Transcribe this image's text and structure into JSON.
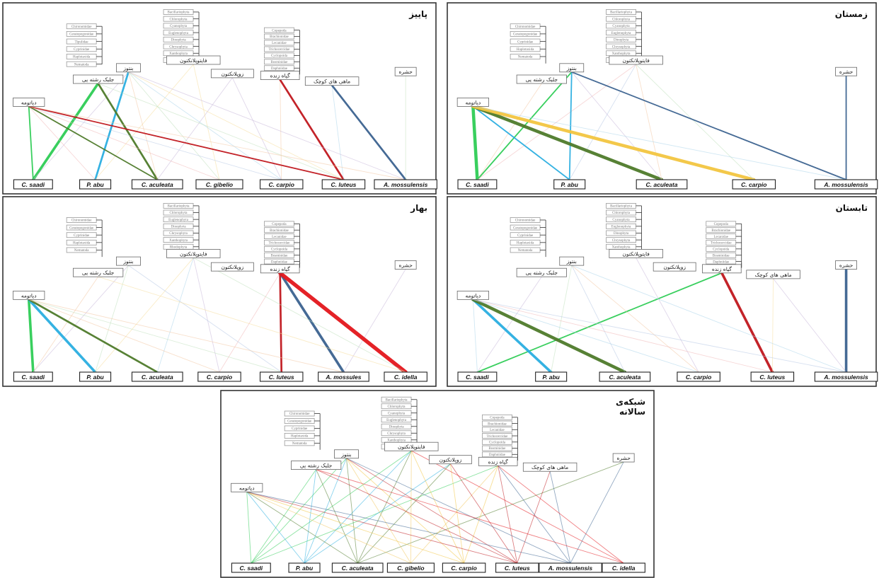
{
  "food_labels": {
    "diatom": "دیاتومه",
    "filament": "جلبک رشته یی",
    "benthos": "بنتوز",
    "phyto": "فایتوپلانکتون",
    "zoo": "زوپلانکتون",
    "plant": "گیاه زنده",
    "smallfish": "ماهی های کوچک",
    "insect": "حشره"
  },
  "colors": {
    "C. saadi": "#2ecc55",
    "P. abu": "#2aaee0",
    "C. aculeata": "#4e7a2a",
    "C. gibelio": "#f2c75c",
    "C. carpio": "#f2c540",
    "C. luteus": "#c0171d",
    "A. mossulensis": "#3b628f",
    "C. idella": "#e3161b"
  },
  "panels": [
    {
      "key": "autumn",
      "title": "پاییز",
      "benthos_taxa": [
        "Chironomidae",
        "Ceratopogonidae",
        "Tipulidae",
        "Cyprinidae",
        "Haplotaxida",
        "Nematoda"
      ],
      "phyto_taxa": [
        "Bacillariophyta",
        "Chlorophyta",
        "Cyanophyta",
        "Euglenophyta",
        "Dinophyta",
        "Chrysophyta",
        "Xanthophyta",
        "Rhodophyta"
      ],
      "zoo_taxa": [
        "Copepoda",
        "Brachionidae",
        "Lecanidae",
        "Trichocercidae",
        "Cyclopoida",
        "Bosminidae",
        "Daphniidae",
        "Sididae"
      ],
      "species": [
        "C. saadi",
        "P. abu",
        "C. aculeata",
        "C. gibelio",
        "C. carpio",
        "C. luteus",
        "A. mossulensis"
      ],
      "links": [
        [
          "C. saadi",
          "diatom",
          2
        ],
        [
          "C. saadi",
          "filament",
          4
        ],
        [
          "C. saadi",
          "benthos",
          1
        ],
        [
          "P. abu",
          "diatom",
          1
        ],
        [
          "P. abu",
          "benthos",
          3
        ],
        [
          "P. abu",
          "phyto",
          1
        ],
        [
          "C. aculeata",
          "diatom",
          2
        ],
        [
          "C. aculeata",
          "filament",
          3
        ],
        [
          "C. aculeata",
          "benthos",
          1
        ],
        [
          "C. aculeata",
          "zoo",
          1
        ],
        [
          "C. gibelio",
          "diatom",
          1
        ],
        [
          "C. gibelio",
          "benthos",
          1
        ],
        [
          "C. gibelio",
          "phyto",
          1
        ],
        [
          "C. carpio",
          "diatom",
          1
        ],
        [
          "C. carpio",
          "benthos",
          1
        ],
        [
          "C. carpio",
          "plant",
          1
        ],
        [
          "C. carpio",
          "zoo",
          1
        ],
        [
          "C. luteus",
          "diatom",
          2
        ],
        [
          "C. luteus",
          "filament",
          1
        ],
        [
          "C. luteus",
          "benthos",
          1
        ],
        [
          "C. luteus",
          "plant",
          3
        ],
        [
          "C. luteus",
          "smallfish",
          1
        ],
        [
          "A. mossulensis",
          "diatom",
          1
        ],
        [
          "A. mossulensis",
          "benthos",
          1
        ],
        [
          "A. mossulensis",
          "smallfish",
          3
        ],
        [
          "A. mossulensis",
          "insect",
          1
        ]
      ]
    },
    {
      "key": "winter",
      "title": "زمستان",
      "benthos_taxa": [
        "Chironomidae",
        "Ceratopogonidae",
        "Cyprinidae",
        "Haplotaxida",
        "Nematoda"
      ],
      "phyto_taxa": [
        "Bacillariophyta",
        "Chlorophyta",
        "Cyanophyta",
        "Euglenophyta",
        "Dinophyta",
        "Chrysophyta",
        "Xanthophyta",
        "Rhodophyta"
      ],
      "zoo_taxa": [],
      "species": [
        "C. saadi",
        "P. abu",
        "C. aculeata",
        "C. carpio",
        "A. mossulensis"
      ],
      "links": [
        [
          "C. saadi",
          "diatom",
          5
        ],
        [
          "C. saadi",
          "filament",
          1
        ],
        [
          "C. saadi",
          "benthos",
          2
        ],
        [
          "C. saadi",
          "phyto",
          1
        ],
        [
          "P. abu",
          "diatom",
          2
        ],
        [
          "P. abu",
          "benthos",
          2
        ],
        [
          "P. abu",
          "phyto",
          1
        ],
        [
          "C. aculeata",
          "diatom",
          5
        ],
        [
          "C. aculeata",
          "phyto",
          1
        ],
        [
          "C. aculeata",
          "benthos",
          1
        ],
        [
          "C. carpio",
          "diatom",
          5
        ],
        [
          "C. carpio",
          "phyto",
          1
        ],
        [
          "A. mossulensis",
          "benthos",
          2
        ],
        [
          "A. mossulensis",
          "insect",
          2
        ],
        [
          "A. mossulensis",
          "diatom",
          1
        ]
      ]
    },
    {
      "key": "spring",
      "title": "بهار",
      "benthos_taxa": [
        "Chironomidae",
        "Ceratopogonidae",
        "Cyprinidae",
        "Haplotaxida",
        "Nematoda"
      ],
      "phyto_taxa": [
        "Bacillariophyta",
        "Chlorophyta",
        "Euglenophyta",
        "Dinophyta",
        "Chrysophyta",
        "Xanthophyta",
        "Rhodophyta"
      ],
      "zoo_taxa": [
        "Copepoda",
        "Brachionidae",
        "Lecanidae",
        "Trichocercidae",
        "Cyclopoida",
        "Bosminidae",
        "Daphniidae",
        "Sididae"
      ],
      "species": [
        "C. saadi",
        "P. abu",
        "C. aculeata",
        "C. carpio",
        "C. luteus",
        "A. mossules",
        "C. idella"
      ],
      "links": [
        [
          "C. saadi",
          "diatom",
          4
        ],
        [
          "C. saadi",
          "filament",
          1
        ],
        [
          "C. saadi",
          "benthos",
          1
        ],
        [
          "P. abu",
          "diatom",
          4
        ],
        [
          "P. abu",
          "benthos",
          1
        ],
        [
          "P. abu",
          "phyto",
          1
        ],
        [
          "C. aculeata",
          "diatom",
          3
        ],
        [
          "C. aculeata",
          "phyto",
          1
        ],
        [
          "C. carpio",
          "diatom",
          1
        ],
        [
          "C. carpio",
          "phyto",
          1
        ],
        [
          "C. carpio",
          "plant",
          1
        ],
        [
          "C. luteus",
          "diatom",
          1
        ],
        [
          "C. luteus",
          "plant",
          3
        ],
        [
          "C. luteus",
          "benthos",
          1
        ],
        [
          "A. mossules",
          "plant",
          4
        ],
        [
          "A. mossules",
          "diatom",
          1
        ],
        [
          "A. mossules",
          "insect",
          1
        ],
        [
          "C. idella",
          "plant",
          6
        ],
        [
          "C. idella",
          "phyto",
          1
        ],
        [
          "C. idella",
          "filament",
          1
        ]
      ]
    },
    {
      "key": "summer",
      "title": "تابستان",
      "benthos_taxa": [
        "Chironomidae",
        "Ceratopogonidae",
        "Cyprinidae",
        "Haplotaxida",
        "Nematoda"
      ],
      "phyto_taxa": [
        "Bacillariophyta",
        "Chlorophyta",
        "Cyanophyta",
        "Euglenophyta",
        "Dinophyta",
        "Chrysophyta",
        "Xanthophyta"
      ],
      "zoo_taxa": [
        "Copepoda",
        "Brachionidae",
        "Lecanidae",
        "Trichocercidae",
        "Cyclopoida",
        "Bosminidae",
        "Daphniidae",
        "Sididae"
      ],
      "species": [
        "C. saadi",
        "P. abu",
        "C. aculeata",
        "C. carpio",
        "C. luteus",
        "A. mossulensis"
      ],
      "links": [
        [
          "C. saadi",
          "diatom",
          1
        ],
        [
          "C. saadi",
          "plant",
          2
        ],
        [
          "C. saadi",
          "filament",
          1
        ],
        [
          "P. abu",
          "diatom",
          4
        ],
        [
          "P. abu",
          "benthos",
          1
        ],
        [
          "C. aculeata",
          "diatom",
          5
        ],
        [
          "C. aculeata",
          "benthos",
          1
        ],
        [
          "C. carpio",
          "diatom",
          1
        ],
        [
          "C. carpio",
          "benthos",
          1
        ],
        [
          "C. carpio",
          "phyto",
          1
        ],
        [
          "C. luteus",
          "diatom",
          1
        ],
        [
          "C. luteus",
          "plant",
          4
        ],
        [
          "C. luteus",
          "smallfish",
          1
        ],
        [
          "A. mossulensis",
          "diatom",
          1
        ],
        [
          "A. mossulensis",
          "benthos",
          1
        ],
        [
          "A. mossulensis",
          "insect",
          4
        ],
        [
          "A. mossulensis",
          "smallfish",
          1
        ]
      ]
    },
    {
      "key": "annual",
      "title": "شبکه‌ی سالانه",
      "benthos_taxa": [
        "Chironomidae",
        "Ceratopogonidae",
        "Cyprinidae",
        "Haplotaxida",
        "Nematoda"
      ],
      "phyto_taxa": [
        "Bacillariophyta",
        "Chlorophyta",
        "Cyanophyta",
        "Euglenophyta",
        "Dinophyta",
        "Chrysophyta",
        "Xanthophyta",
        "Rhodophyta"
      ],
      "zoo_taxa": [
        "Copepoda",
        "Brachionidae",
        "Lecanidae",
        "Trichocercidae",
        "Cyclopoida",
        "Bosminidae",
        "Daphniidae",
        "Sididae"
      ],
      "species": [
        "C. saadi",
        "P. abu",
        "C. aculeata",
        "C. gibelio",
        "C. carpio",
        "C. luteus",
        "A. mossulensis",
        "C. idella"
      ],
      "links": [
        [
          "C. saadi",
          "diatom",
          1
        ],
        [
          "C. saadi",
          "filament",
          1
        ],
        [
          "C. saadi",
          "benthos",
          1
        ],
        [
          "C. saadi",
          "phyto",
          1
        ],
        [
          "C. saadi",
          "plant",
          1
        ],
        [
          "P. abu",
          "diatom",
          1
        ],
        [
          "P. abu",
          "filament",
          1
        ],
        [
          "P. abu",
          "benthos",
          1
        ],
        [
          "P. abu",
          "phyto",
          1
        ],
        [
          "P. abu",
          "zoo",
          1
        ],
        [
          "C. aculeata",
          "diatom",
          1
        ],
        [
          "C. aculeata",
          "filament",
          1
        ],
        [
          "C. aculeata",
          "benthos",
          1
        ],
        [
          "C. aculeata",
          "phyto",
          1
        ],
        [
          "C. aculeata",
          "zoo",
          1
        ],
        [
          "C. aculeata",
          "insect",
          1
        ],
        [
          "C. gibelio",
          "diatom",
          1
        ],
        [
          "C. gibelio",
          "benthos",
          1
        ],
        [
          "C. gibelio",
          "phyto",
          1
        ],
        [
          "C. gibelio",
          "plant",
          1
        ],
        [
          "C. carpio",
          "diatom",
          1
        ],
        [
          "C. carpio",
          "benthos",
          1
        ],
        [
          "C. carpio",
          "phyto",
          1
        ],
        [
          "C. carpio",
          "plant",
          1
        ],
        [
          "C. carpio",
          "zoo",
          1
        ],
        [
          "C. luteus",
          "diatom",
          1
        ],
        [
          "C. luteus",
          "filament",
          1
        ],
        [
          "C. luteus",
          "benthos",
          1
        ],
        [
          "C. luteus",
          "plant",
          1
        ],
        [
          "C. luteus",
          "smallfish",
          1
        ],
        [
          "C. luteus",
          "zoo",
          1
        ],
        [
          "A. mossulensis",
          "diatom",
          1
        ],
        [
          "A. mossulensis",
          "benthos",
          1
        ],
        [
          "A. mossulensis",
          "smallfish",
          1
        ],
        [
          "A. mossulensis",
          "insect",
          1
        ],
        [
          "A. mossulensis",
          "plant",
          1
        ],
        [
          "C. idella",
          "plant",
          1
        ],
        [
          "C. idella",
          "phyto",
          1
        ],
        [
          "C. idella",
          "filament",
          1
        ]
      ]
    }
  ]
}
